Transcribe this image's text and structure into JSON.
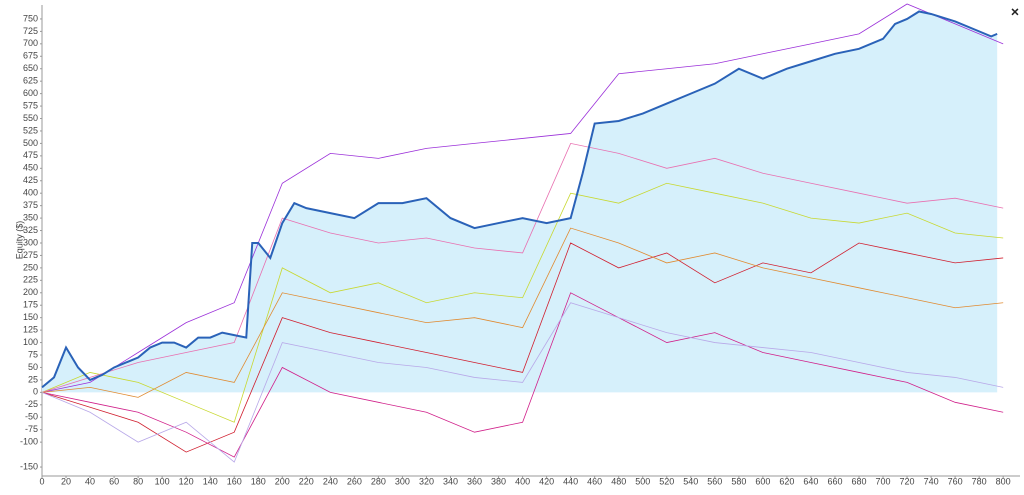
{
  "chart_data": {
    "type": "line",
    "y_label": "Equity ($)",
    "close_button": "×",
    "xlim": [
      0,
      814
    ],
    "ylim": [
      -168,
      778
    ],
    "xticks": [
      0,
      20,
      40,
      60,
      80,
      100,
      120,
      140,
      160,
      180,
      200,
      220,
      240,
      260,
      280,
      300,
      320,
      340,
      360,
      380,
      400,
      420,
      440,
      460,
      480,
      500,
      520,
      540,
      560,
      580,
      600,
      620,
      640,
      660,
      680,
      700,
      720,
      740,
      760,
      780,
      800
    ],
    "yticks": [
      -150,
      -100,
      -75,
      -50,
      -25,
      0,
      25,
      50,
      75,
      100,
      125,
      150,
      175,
      200,
      225,
      250,
      275,
      300,
      325,
      350,
      375,
      400,
      425,
      450,
      475,
      500,
      525,
      550,
      575,
      600,
      625,
      650,
      675,
      700,
      725,
      750
    ],
    "grid": false,
    "series": [
      {
        "color": "#9b30d9",
        "width": 0.8,
        "x": [
          0,
          40,
          80,
          120,
          160,
          200,
          240,
          280,
          320,
          360,
          400,
          440,
          480,
          520,
          560,
          600,
          640,
          680,
          720,
          760,
          800
        ],
        "values": [
          0,
          20,
          80,
          140,
          180,
          420,
          480,
          470,
          490,
          500,
          510,
          520,
          640,
          650,
          660,
          680,
          700,
          720,
          780,
          740,
          700
        ]
      },
      {
        "color": "#d02030",
        "width": 0.8,
        "x": [
          0,
          40,
          80,
          120,
          160,
          200,
          240,
          280,
          320,
          360,
          400,
          440,
          480,
          520,
          560,
          600,
          640,
          680,
          720,
          760,
          800
        ],
        "values": [
          0,
          -30,
          -60,
          -120,
          -80,
          150,
          120,
          100,
          80,
          60,
          40,
          300,
          250,
          280,
          220,
          260,
          240,
          300,
          280,
          260,
          270
        ]
      },
      {
        "color": "#c8d830",
        "width": 0.8,
        "x": [
          0,
          40,
          80,
          120,
          160,
          200,
          240,
          280,
          320,
          360,
          400,
          440,
          480,
          520,
          560,
          600,
          640,
          680,
          720,
          760,
          800
        ],
        "values": [
          0,
          40,
          20,
          -20,
          -60,
          250,
          200,
          220,
          180,
          200,
          190,
          400,
          380,
          420,
          400,
          380,
          350,
          340,
          360,
          320,
          310
        ]
      },
      {
        "color": "#d0208a",
        "width": 0.8,
        "x": [
          0,
          40,
          80,
          120,
          160,
          200,
          240,
          280,
          320,
          360,
          400,
          440,
          480,
          520,
          560,
          600,
          640,
          680,
          720,
          760,
          800
        ],
        "values": [
          0,
          -20,
          -40,
          -80,
          -130,
          50,
          0,
          -20,
          -40,
          -80,
          -60,
          200,
          150,
          100,
          120,
          80,
          60,
          40,
          20,
          -20,
          -40
        ]
      },
      {
        "color": "#e870b0",
        "width": 0.8,
        "x": [
          0,
          40,
          80,
          120,
          160,
          200,
          240,
          280,
          320,
          360,
          400,
          440,
          480,
          520,
          560,
          600,
          640,
          680,
          720,
          760,
          800
        ],
        "values": [
          0,
          30,
          60,
          80,
          100,
          350,
          320,
          300,
          310,
          290,
          280,
          500,
          480,
          450,
          470,
          440,
          420,
          400,
          380,
          390,
          370
        ]
      },
      {
        "color": "#e08a30",
        "width": 0.8,
        "x": [
          0,
          40,
          80,
          120,
          160,
          200,
          240,
          280,
          320,
          360,
          400,
          440,
          480,
          520,
          560,
          600,
          640,
          680,
          720,
          760,
          800
        ],
        "values": [
          0,
          10,
          -10,
          40,
          20,
          200,
          180,
          160,
          140,
          150,
          130,
          330,
          300,
          260,
          280,
          250,
          230,
          210,
          190,
          170,
          180
        ]
      },
      {
        "color": "#b8a8e8",
        "width": 0.8,
        "x": [
          0,
          40,
          80,
          120,
          160,
          200,
          240,
          280,
          320,
          360,
          400,
          440,
          480,
          520,
          560,
          600,
          640,
          680,
          720,
          760,
          800
        ],
        "values": [
          0,
          -40,
          -100,
          -60,
          -140,
          100,
          80,
          60,
          50,
          30,
          20,
          180,
          150,
          120,
          100,
          90,
          80,
          60,
          40,
          30,
          10
        ]
      },
      {
        "color": "#2a62b8",
        "width": 2,
        "fill": "#d6f0fb",
        "x": [
          0,
          10,
          20,
          30,
          40,
          50,
          60,
          70,
          80,
          90,
          100,
          110,
          120,
          130,
          140,
          150,
          160,
          170,
          175,
          180,
          190,
          200,
          210,
          220,
          240,
          260,
          280,
          300,
          320,
          340,
          360,
          380,
          400,
          420,
          440,
          450,
          460,
          480,
          500,
          520,
          540,
          560,
          580,
          600,
          620,
          640,
          660,
          680,
          700,
          710,
          720,
          730,
          740,
          760,
          780,
          790,
          795
        ],
        "values": [
          10,
          30,
          90,
          50,
          25,
          35,
          50,
          60,
          70,
          90,
          100,
          100,
          90,
          110,
          110,
          120,
          115,
          110,
          300,
          300,
          270,
          340,
          380,
          370,
          360,
          350,
          380,
          380,
          390,
          350,
          330,
          340,
          350,
          340,
          350,
          440,
          540,
          545,
          560,
          580,
          600,
          620,
          650,
          630,
          650,
          665,
          680,
          690,
          710,
          740,
          750,
          765,
          760,
          745,
          725,
          715,
          720
        ]
      }
    ]
  }
}
